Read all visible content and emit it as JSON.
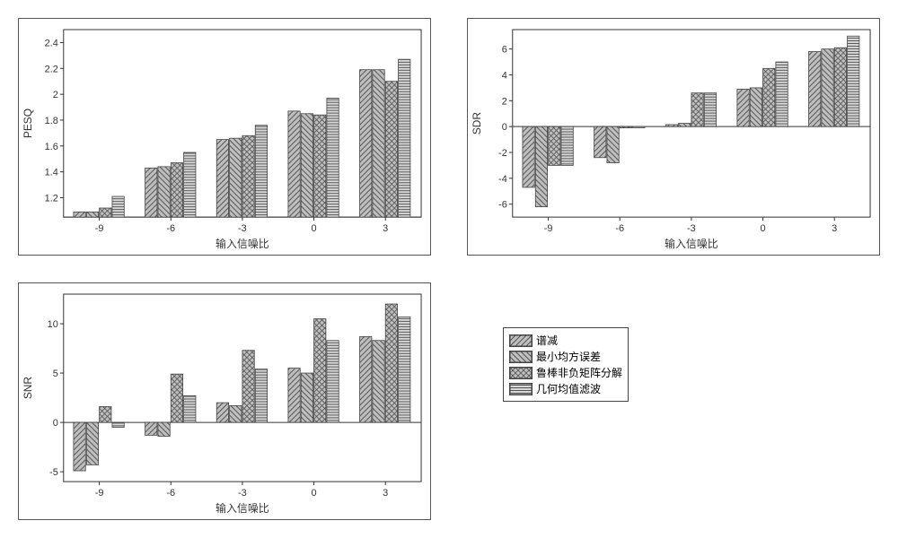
{
  "shared": {
    "xlabel": "输入信噪比",
    "x_categories": [
      -9,
      -6,
      -3,
      0,
      3
    ],
    "series_labels": [
      "谱减",
      "最小均方误差",
      "鲁棒非负矩阵分解",
      "几何均值滤波"
    ],
    "bar_colors": [
      "#bfbfbf",
      "#bfbfbf",
      "#bfbfbf",
      "#d9d9d9"
    ],
    "bar_border": "#444444",
    "hatch_patterns": [
      "nw-se",
      "ne-sw",
      "cross",
      "horiz"
    ],
    "bar_width": 0.18,
    "background": "#ffffff",
    "axis_color": "#333333",
    "tick_fontsize": 11,
    "label_fontsize": 12
  },
  "pesq": {
    "type": "bar",
    "ylabel": "PESQ",
    "ylim": [
      1.05,
      2.5
    ],
    "yticks": [
      1.2,
      1.4,
      1.6,
      1.8,
      2.0,
      2.2,
      2.4
    ],
    "series": [
      [
        1.09,
        1.43,
        1.65,
        1.87,
        2.19
      ],
      [
        1.09,
        1.44,
        1.66,
        1.85,
        2.19
      ],
      [
        1.12,
        1.47,
        1.68,
        1.84,
        2.1
      ],
      [
        1.21,
        1.55,
        1.76,
        1.97,
        2.27
      ]
    ]
  },
  "sdr": {
    "type": "bar",
    "ylabel": "SDR",
    "ylim": [
      -7,
      7.5
    ],
    "yticks": [
      -6,
      -4,
      -2,
      0,
      2,
      4,
      6
    ],
    "series": [
      [
        -4.7,
        -2.4,
        0.15,
        2.9,
        5.8
      ],
      [
        -6.2,
        -2.8,
        0.25,
        3.0,
        6.0
      ],
      [
        -3.0,
        -0.1,
        2.6,
        4.5,
        6.1
      ],
      [
        -3.0,
        -0.1,
        2.6,
        5.0,
        7.0
      ]
    ]
  },
  "snr": {
    "type": "bar",
    "ylabel": "SNR",
    "ylim": [
      -6,
      13
    ],
    "yticks": [
      -5,
      0,
      5,
      10
    ],
    "series": [
      [
        -4.9,
        -1.3,
        2.0,
        5.5,
        8.7
      ],
      [
        -4.3,
        -1.4,
        1.7,
        5.0,
        8.3
      ],
      [
        1.6,
        4.9,
        7.3,
        10.5,
        12.0
      ],
      [
        -0.5,
        2.7,
        5.4,
        8.3,
        10.7
      ]
    ]
  },
  "legend_title": ""
}
